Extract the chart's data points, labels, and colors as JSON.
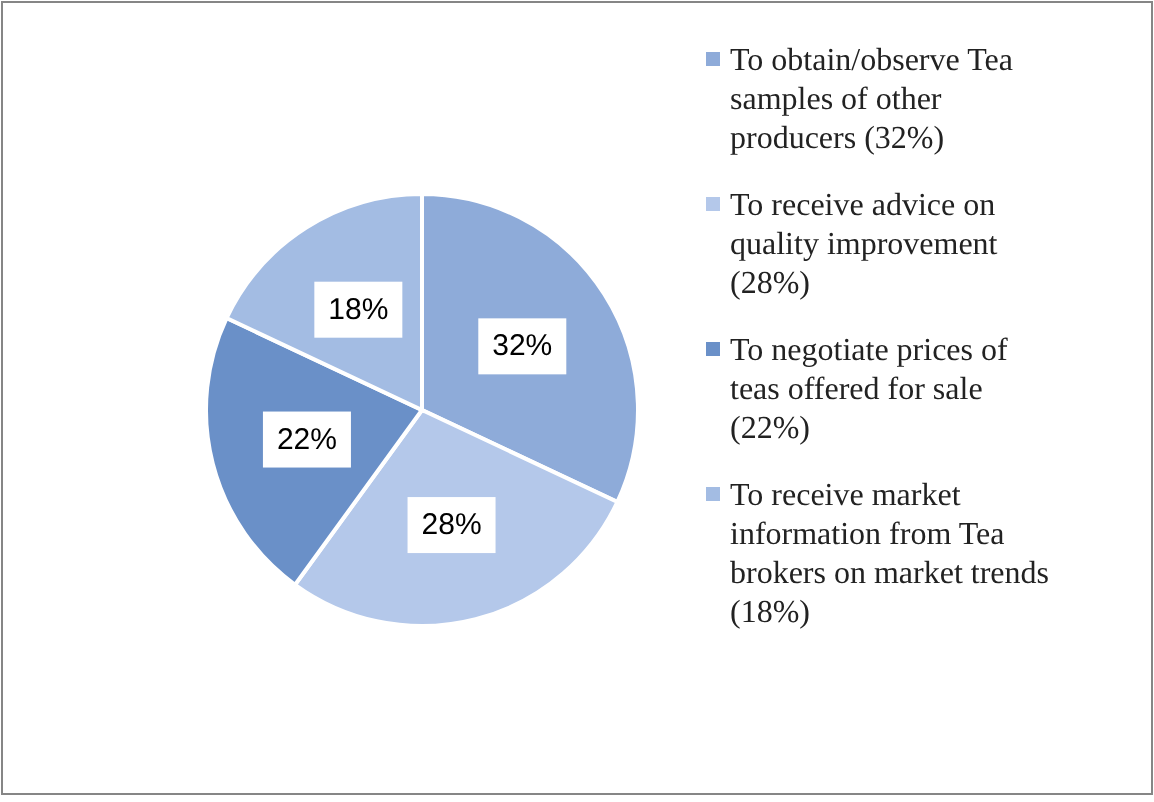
{
  "chart_data": {
    "type": "pie",
    "categories": [
      "To obtain/observe Tea samples of other producers (32%)",
      "To receive advice on quality improvement (28%)",
      "To negotiate prices of teas offered for sale (22%)",
      "To receive market information from Tea brokers on market trends (18%)"
    ],
    "values": [
      32,
      28,
      22,
      18
    ],
    "value_labels": [
      "32%",
      "28%",
      "22%",
      "18%"
    ],
    "colors": [
      "#8eabd9",
      "#b4c8ea",
      "#6a90c8",
      "#a3bce3"
    ],
    "legend": "right"
  }
}
